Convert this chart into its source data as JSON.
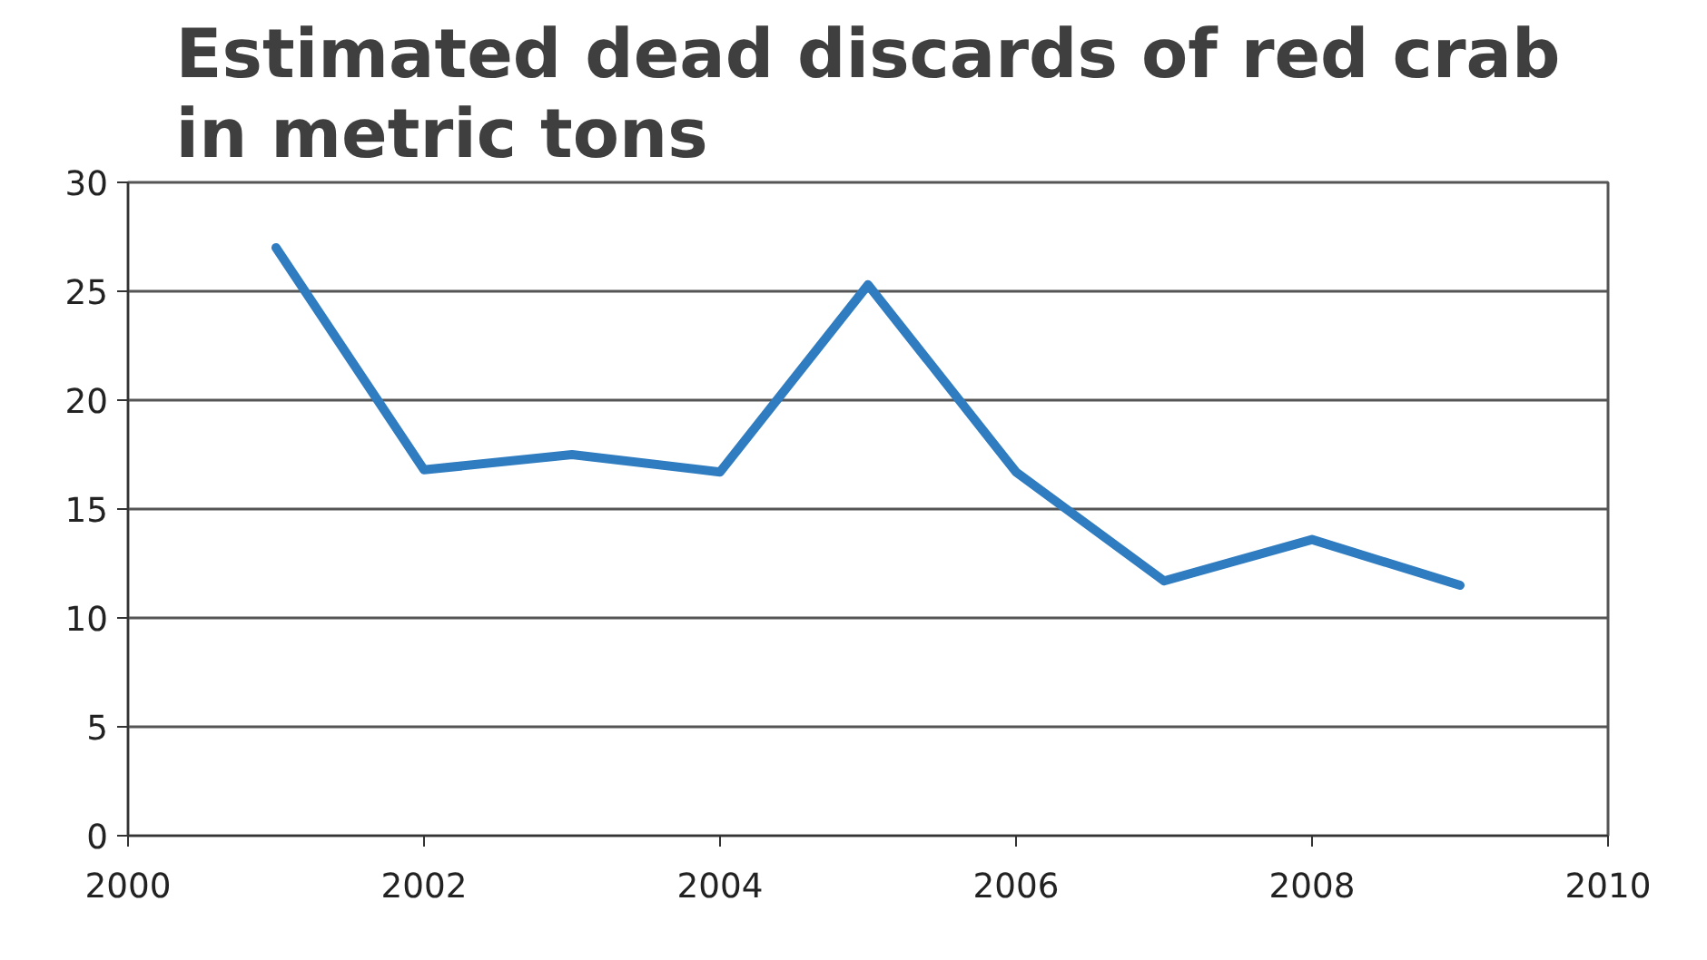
{
  "chart_data": {
    "type": "line",
    "title": "Estimated dead discards of red crab\nin metric tons",
    "x": [
      2001,
      2002,
      2003,
      2004,
      2005,
      2006,
      2007,
      2008,
      2009
    ],
    "series": [
      {
        "color": "#2f7cc0",
        "values": [
          27.0,
          16.8,
          17.5,
          16.7,
          25.3,
          16.7,
          11.7,
          13.6,
          11.5
        ]
      }
    ],
    "xlim": [
      2000,
      2010
    ],
    "xticks": [
      2000,
      2002,
      2004,
      2006,
      2008,
      2010
    ],
    "ylim": [
      0,
      30
    ],
    "yticks": [
      0,
      5,
      10,
      15,
      20,
      25,
      30
    ],
    "grid": "y",
    "marker": "none",
    "line_style": "solid"
  }
}
